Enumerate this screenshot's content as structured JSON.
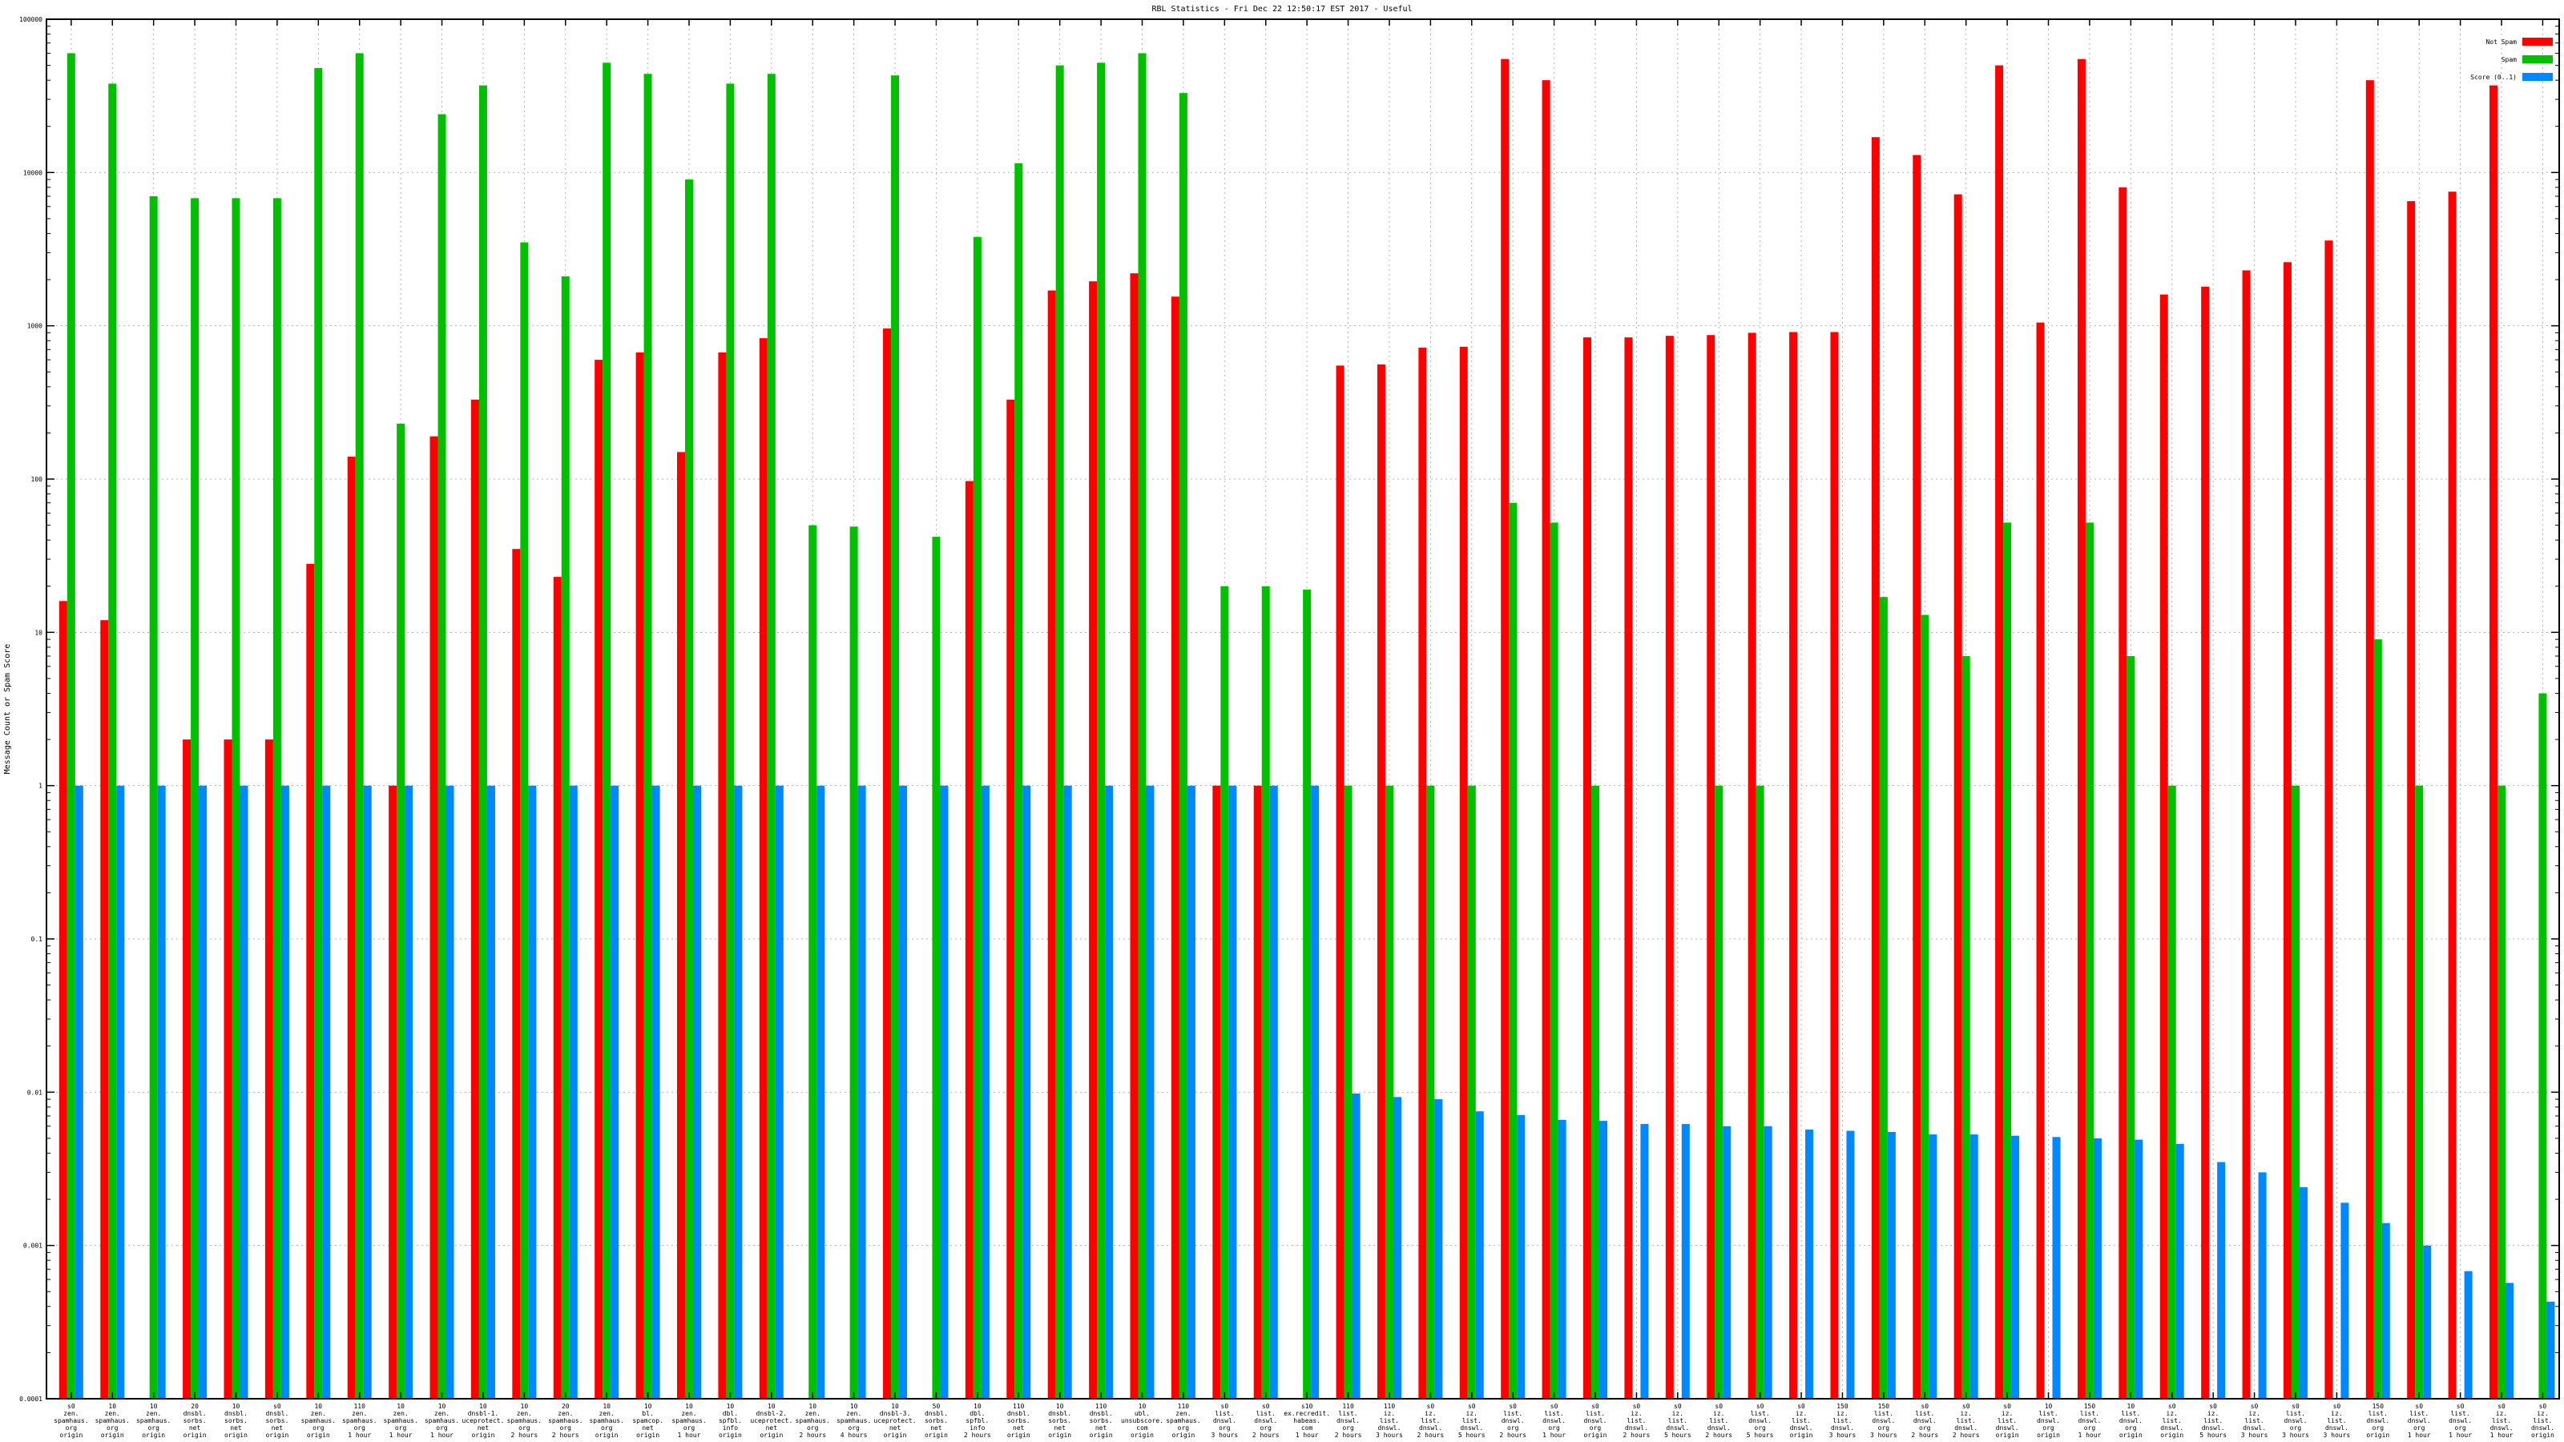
{
  "chart_data": {
    "type": "bar",
    "title": "RBL Statistics - Fri Dec 22 12:50:17 EST 2017 - Useful",
    "ylabel": "Message Count or Spam Score",
    "xlabel": "",
    "yscale": "log",
    "ylim": [
      0.0001,
      100000
    ],
    "yticks": [
      "100000",
      "10000",
      "1000",
      "100",
      "10",
      "1",
      "0.1",
      "0.01",
      "0.001",
      "0.0001"
    ],
    "grid": true,
    "legend_position": "top-right",
    "categories": [
      [
        "s0",
        "zen.",
        "spamhaus.",
        "org",
        "origin"
      ],
      [
        "10",
        "zen.",
        "spamhaus.",
        "org",
        "origin"
      ],
      [
        "10",
        "zen.",
        "spamhaus.",
        "org",
        "origin"
      ],
      [
        "20",
        "dnsbl.",
        "sorbs.",
        "net",
        "origin"
      ],
      [
        "10",
        "dnsbl.",
        "sorbs.",
        "net",
        "origin"
      ],
      [
        "s0",
        "dnsbl.",
        "sorbs.",
        "net",
        "origin"
      ],
      [
        "10",
        "zen.",
        "spamhaus.",
        "org",
        "origin"
      ],
      [
        "110",
        "zen.",
        "spamhaus.",
        "org",
        "1 hour"
      ],
      [
        "10",
        "zen.",
        "spamhaus.",
        "org",
        "1 hour"
      ],
      [
        "10",
        "zen.",
        "spamhaus.",
        "org",
        "1 hour"
      ],
      [
        "10",
        "dnsbl-1.",
        "uceprotect.",
        "net",
        "origin"
      ],
      [
        "10",
        "zen.",
        "spamhaus.",
        "org",
        "2 hours"
      ],
      [
        "20",
        "zen.",
        "spamhaus.",
        "org",
        "2 hours"
      ],
      [
        "10",
        "zen.",
        "spamhaus.",
        "org",
        "origin"
      ],
      [
        "10",
        "bl.",
        "spamcop.",
        "net",
        "origin"
      ],
      [
        "10",
        "zen.",
        "spamhaus.",
        "org",
        "1 hour"
      ],
      [
        "10",
        "dbl.",
        "spfbl.",
        "info",
        "origin"
      ],
      [
        "10",
        "dnsbl-2.",
        "uceprotect.",
        "net",
        "origin"
      ],
      [
        "10",
        "zen.",
        "spamhaus.",
        "org",
        "2 hours"
      ],
      [
        "10",
        "zen.",
        "spamhaus.",
        "org",
        "4 hours"
      ],
      [
        "10",
        "dnsbl-3.",
        "uceprotect.",
        "net",
        "origin"
      ],
      [
        "50",
        "dnsbl.",
        "sorbs.",
        "net",
        "origin"
      ],
      [
        "10",
        "dbl.",
        "spfbl.",
        "info",
        "2 hours"
      ],
      [
        "110",
        "dnsbl.",
        "sorbs.",
        "net",
        "origin"
      ],
      [
        "10",
        "dnsbl.",
        "sorbs.",
        "net",
        "origin"
      ],
      [
        "110",
        "dnsbl.",
        "sorbs.",
        "net",
        "origin"
      ],
      [
        "10",
        "ubl.",
        "unsubscore.",
        "com",
        "origin"
      ],
      [
        "110",
        "zen.",
        "spamhaus.",
        "org",
        "origin"
      ],
      [
        "s0",
        "list.",
        "dnswl.",
        "org",
        "3 hours"
      ],
      [
        "s0",
        "list.",
        "dnswl.",
        "org",
        "2 hours"
      ],
      [
        "s10",
        "ex.recredit.",
        "habeas.",
        "com",
        "1 hour"
      ],
      [
        "110",
        "list.",
        "dnswl.",
        "org",
        "2 hours"
      ],
      [
        "110",
        "iz.",
        "list.",
        "dnswl.",
        "3 hours"
      ],
      [
        "s0",
        "iz.",
        "list.",
        "dnswl.",
        "2 hours"
      ],
      [
        "s0",
        "iz.",
        "list.",
        "dnswl.",
        "5 hours"
      ],
      [
        "s0",
        "list.",
        "dnswl.",
        "org",
        "2 hours"
      ],
      [
        "s0",
        "list.",
        "dnswl.",
        "org",
        "1 hour"
      ],
      [
        "s0",
        "list.",
        "dnswl.",
        "org",
        "origin"
      ],
      [
        "s0",
        "iz.",
        "list.",
        "dnswl.",
        "2 hours"
      ],
      [
        "s0",
        "iz.",
        "list.",
        "dnswl.",
        "5 hours"
      ],
      [
        "s0",
        "iz.",
        "list.",
        "dnswl.",
        "2 hours"
      ],
      [
        "s0",
        "list.",
        "dnswl.",
        "org",
        "5 hours"
      ],
      [
        "s0",
        "iz.",
        "list.",
        "dnswl.",
        "origin"
      ],
      [
        "150",
        "iz.",
        "list.",
        "dnswl.",
        "3 hours"
      ],
      [
        "150",
        "list.",
        "dnswl.",
        "org",
        "3 hours"
      ],
      [
        "s0",
        "list.",
        "dnswl.",
        "org",
        "2 hours"
      ],
      [
        "s0",
        "iz.",
        "list.",
        "dnswl.",
        "2 hours"
      ],
      [
        "s0",
        "iz.",
        "list.",
        "dnswl.",
        "origin"
      ],
      [
        "10",
        "list.",
        "dnswl.",
        "org",
        "origin"
      ],
      [
        "150",
        "list.",
        "dnswl.",
        "org",
        "1 hour"
      ],
      [
        "10",
        "list.",
        "dnswl.",
        "org",
        "origin"
      ],
      [
        "s0",
        "iz.",
        "list.",
        "dnswl.",
        "origin"
      ],
      [
        "s0",
        "iz.",
        "list.",
        "dnswl.",
        "5 hours"
      ],
      [
        "s0",
        "iz.",
        "list.",
        "dnswl.",
        "3 hours"
      ],
      [
        "s0",
        "list.",
        "dnswl.",
        "org",
        "3 hours"
      ],
      [
        "s0",
        "iz.",
        "list.",
        "dnswl.",
        "3 hours"
      ],
      [
        "150",
        "list.",
        "dnswl.",
        "org",
        "origin"
      ],
      [
        "s0",
        "list.",
        "dnswl.",
        "org",
        "1 hour"
      ],
      [
        "s0",
        "list.",
        "dnswl.",
        "org",
        "1 hour"
      ],
      [
        "s0",
        "iz.",
        "list.",
        "dnswl.",
        "1 hour"
      ],
      [
        "s0",
        "iz.",
        "list.",
        "dnswl.",
        "origin"
      ]
    ],
    "series": [
      {
        "name": "Not Spam",
        "color": "#ff0000",
        "values": [
          16,
          12,
          null,
          2,
          2,
          2,
          28,
          140,
          1,
          190,
          330,
          35,
          23,
          600,
          670,
          150,
          670,
          830,
          null,
          null,
          960,
          null,
          97,
          330,
          1700,
          1950,
          2200,
          1550,
          1,
          1,
          null,
          550,
          560,
          720,
          730,
          55000,
          40000,
          840,
          840,
          860,
          870,
          900,
          910,
          910,
          17000,
          13000,
          7200,
          50000,
          1050,
          55000,
          8000,
          1600,
          1800,
          2300,
          2600,
          3600,
          40000,
          6500,
          7500,
          37000,
          null
        ]
      },
      {
        "name": "Spam",
        "color": "#00c000",
        "values": [
          60000,
          38000,
          7000,
          6800,
          6800,
          6800,
          48000,
          60000,
          230,
          24000,
          37000,
          3500,
          2100,
          52000,
          44000,
          9000,
          38000,
          44000,
          50,
          49,
          43000,
          42,
          3800,
          11500,
          50000,
          52000,
          60000,
          33000,
          20,
          20,
          19,
          1,
          1,
          1,
          1,
          70,
          52,
          1,
          null,
          null,
          1,
          1,
          null,
          null,
          17,
          13,
          7,
          52,
          null,
          52,
          7,
          1,
          null,
          null,
          1,
          null,
          9,
          1,
          null,
          1,
          4
        ]
      },
      {
        "name": "Score (0..1)",
        "color": "#0088ff",
        "values": [
          1,
          1,
          1,
          1,
          1,
          1,
          1,
          1,
          1,
          1,
          1,
          1,
          1,
          1,
          1,
          1,
          1,
          1,
          1,
          1,
          1,
          1,
          1,
          1,
          1,
          1,
          1,
          1,
          1,
          1,
          1,
          0.0098,
          0.0093,
          0.009,
          0.0075,
          0.0071,
          0.0066,
          0.0065,
          0.0062,
          0.0062,
          0.006,
          0.006,
          0.0057,
          0.0056,
          0.0055,
          0.0053,
          0.0053,
          0.0052,
          0.0051,
          0.005,
          0.0049,
          0.0046,
          0.0035,
          0.003,
          0.0024,
          0.0019,
          0.0014,
          0.001,
          0.00068,
          0.00057,
          0.00043
        ]
      }
    ]
  }
}
